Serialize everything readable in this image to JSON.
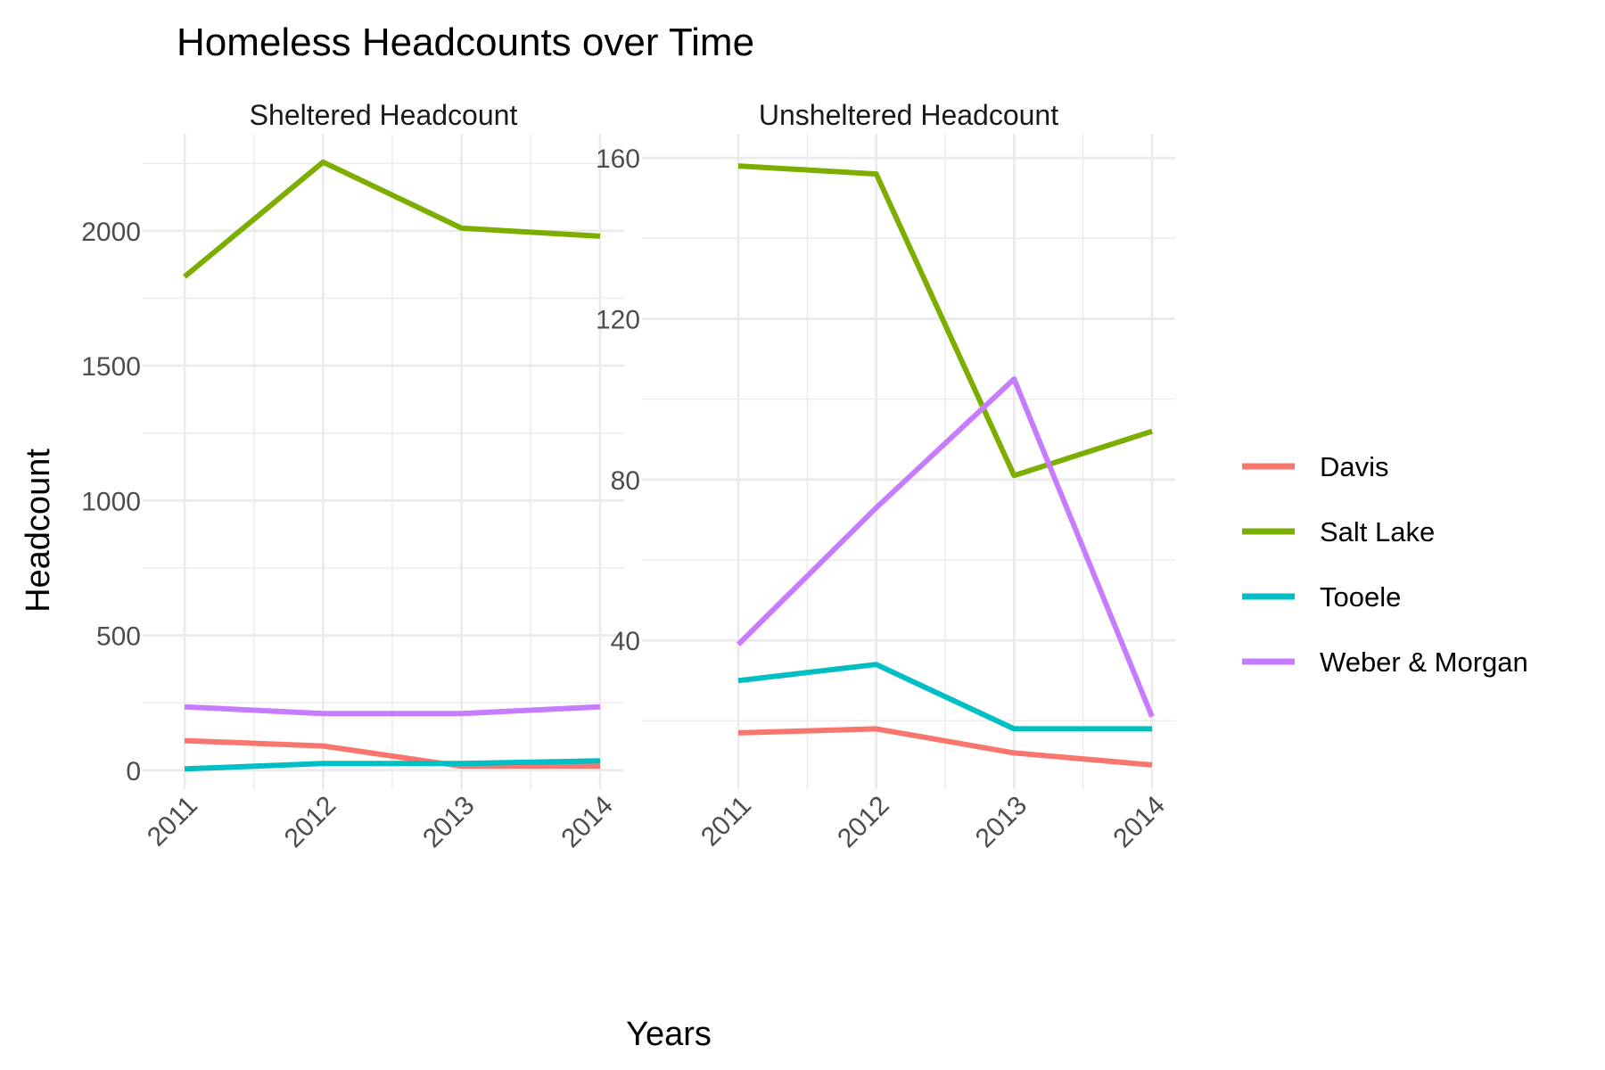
{
  "chart_data": {
    "type": "line",
    "title": "Homeless Headcounts over Time",
    "xlabel": "Years",
    "ylabel": "Headcount",
    "x": [
      "2011",
      "2012",
      "2013",
      "2014"
    ],
    "grid": true,
    "legend_position": "right",
    "legend": [
      {
        "name": "Davis",
        "color": "#F8766D"
      },
      {
        "name": "Salt Lake",
        "color": "#7CAE00"
      },
      {
        "name": "Tooele",
        "color": "#00BFC4"
      },
      {
        "name": "Weber & Morgan",
        "color": "#C77CFF"
      }
    ],
    "panels": [
      {
        "title": "Sheltered Headcount",
        "ylim": [
          -70,
          2360
        ],
        "yticks": [
          0,
          500,
          1000,
          1500,
          2000
        ],
        "series": [
          {
            "name": "Davis",
            "values": [
              110,
              90,
              15,
              15
            ]
          },
          {
            "name": "Salt Lake",
            "values": [
              1830,
              2255,
              2010,
              1980
            ]
          },
          {
            "name": "Tooele",
            "values": [
              5,
              25,
              25,
              35
            ]
          },
          {
            "name": "Weber & Morgan",
            "values": [
              235,
              210,
              210,
              235
            ]
          }
        ]
      },
      {
        "title": "Unsheltered Headcount",
        "ylim": [
          3,
          166
        ],
        "yticks": [
          40,
          80,
          120,
          160
        ],
        "series": [
          {
            "name": "Davis",
            "values": [
              17,
              18,
              12,
              9
            ]
          },
          {
            "name": "Salt Lake",
            "values": [
              158,
              156,
              81,
              92
            ]
          },
          {
            "name": "Tooele",
            "values": [
              30,
              34,
              18,
              18
            ]
          },
          {
            "name": "Weber & Morgan",
            "values": [
              39,
              73,
              105,
              21
            ]
          }
        ]
      }
    ]
  }
}
